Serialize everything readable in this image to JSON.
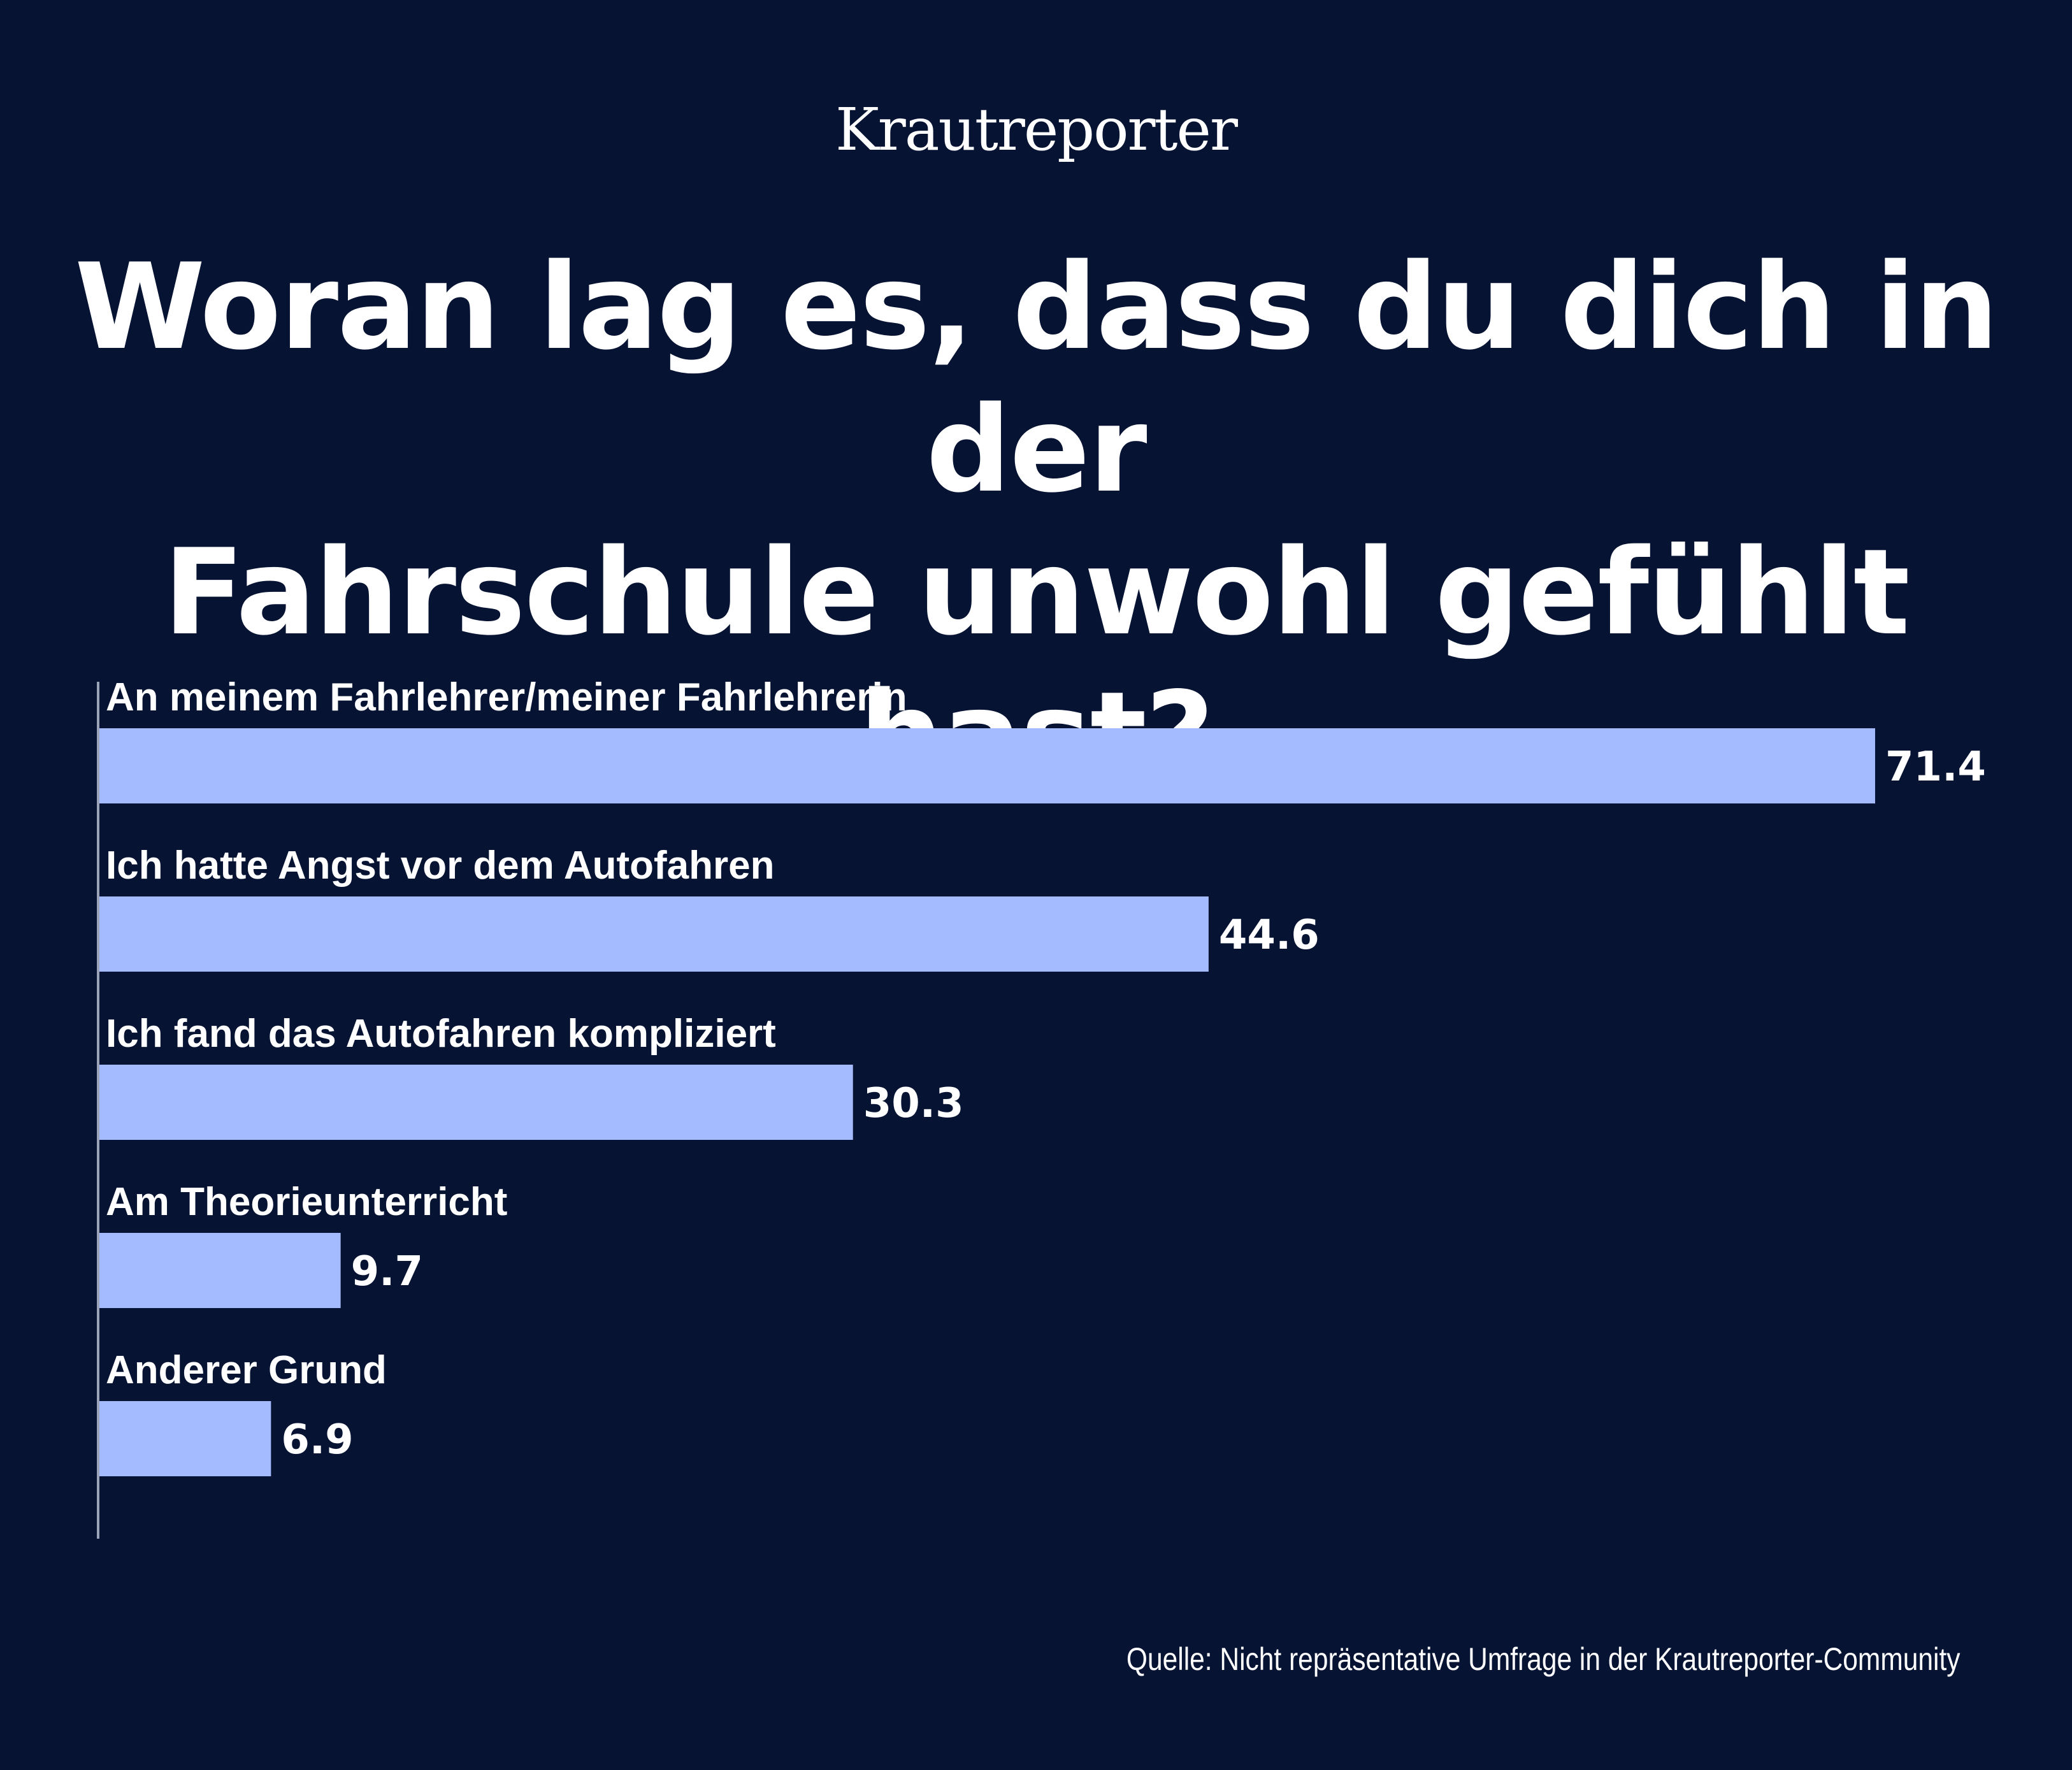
{
  "brand": "Krautreporter",
  "colors": {
    "background": "#061333",
    "bar": "#a4bcff",
    "text": "#ffffff",
    "axis": "#9aa3b8"
  },
  "source": "Quelle: Nicht repräsentative Umfrage in der Krautreporter-Community",
  "chart_data": {
    "type": "bar",
    "orientation": "horizontal",
    "title": "Woran lag es, dass du dich in der Fahrschule unwohl gefühlt hast?",
    "title_lines": [
      "Woran lag es, dass du dich in der",
      "Fahrschule unwohl gefühlt hast?"
    ],
    "categories": [
      "An meinem Fahrlehrer/meiner Fahrlehrerin",
      "Ich hatte Angst vor dem Autofahren",
      "Ich fand das Autofahren kompliziert",
      "Am Theorieunterricht",
      "Anderer Grund"
    ],
    "values": [
      71.4,
      44.6,
      30.3,
      9.7,
      6.9
    ],
    "value_labels": [
      "71.4",
      "44.6",
      "30.3",
      "9.7",
      "6.9"
    ],
    "xlabel": "",
    "ylabel": "",
    "xlim": [
      0,
      71.4
    ],
    "grid": false,
    "legend": "none"
  }
}
